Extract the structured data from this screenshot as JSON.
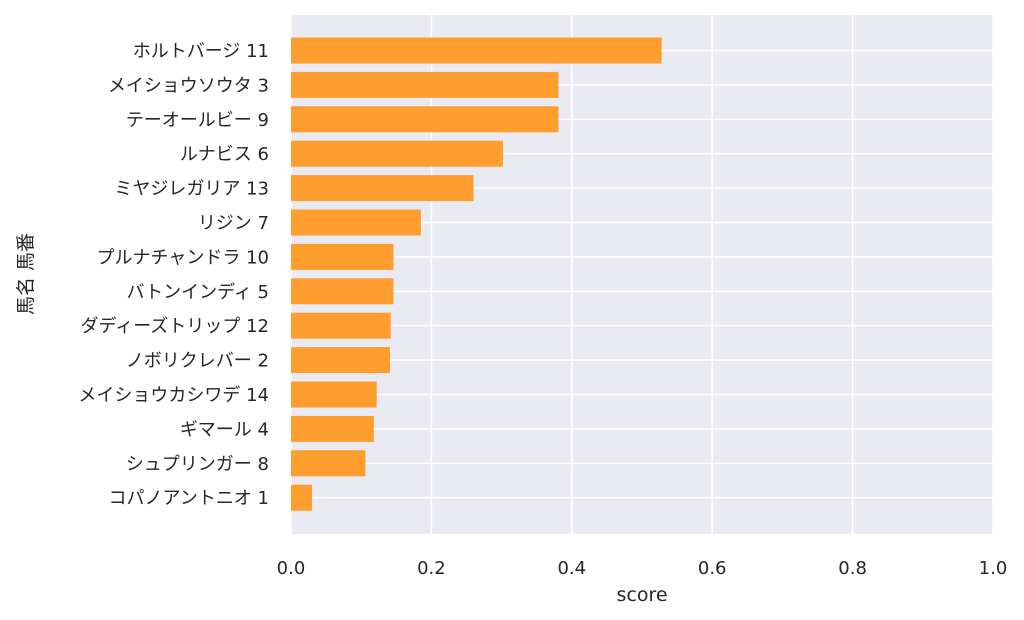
{
  "chart_data": {
    "type": "bar",
    "orientation": "horizontal",
    "categories": [
      "ホルトバージ 11",
      "メイショウソウタ 3",
      "テーオールビー 9",
      "ルナビス 6",
      "ミヤジレガリア 13",
      "リジン 7",
      "プルナチャンドラ 10",
      "バトンインディ 5",
      "ダディーズトリップ 12",
      "ノボリクレバー 2",
      "メイショウカシワデ 14",
      "ギマール 4",
      "シュプリンガー 8",
      "コパノアントニオ 1"
    ],
    "values": [
      0.528,
      0.381,
      0.381,
      0.302,
      0.26,
      0.185,
      0.146,
      0.146,
      0.142,
      0.141,
      0.122,
      0.118,
      0.106,
      0.03
    ],
    "xlabel": "score",
    "ylabel": "馬名 馬番",
    "xlim": [
      0,
      1.0
    ],
    "xticks": [
      "0.0",
      "0.2",
      "0.4",
      "0.6",
      "0.8",
      "1.0"
    ],
    "grid": true,
    "colors": {
      "bar": "#FF9D2E",
      "background": "#EAEAF2",
      "grid": "#FFFFFF"
    }
  }
}
